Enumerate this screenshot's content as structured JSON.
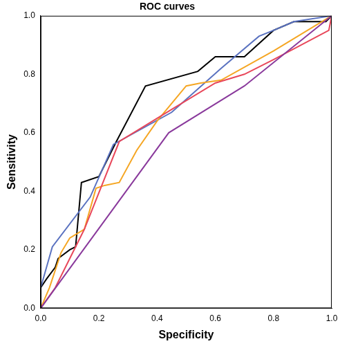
{
  "chart_data": {
    "type": "line",
    "title": "ROC curves",
    "x_label": "Specificity",
    "y_label": "Sensitivity",
    "xlim": [
      0,
      1
    ],
    "ylim": [
      0,
      1
    ],
    "xticks": [
      {
        "value": 0,
        "label": "0.0"
      },
      {
        "value": 0.2,
        "label": "0.2"
      },
      {
        "value": 0.4,
        "label": "0.4"
      },
      {
        "value": 0.6,
        "label": "0.6"
      },
      {
        "value": 0.8,
        "label": "0.8"
      },
      {
        "value": 1,
        "label": "1.0"
      }
    ],
    "yticks": [
      {
        "value": 0,
        "label": "0.0"
      },
      {
        "value": 0.2,
        "label": "0.2"
      },
      {
        "value": 0.4,
        "label": "0.4"
      },
      {
        "value": 0.6,
        "label": "0.6"
      },
      {
        "value": 0.8,
        "label": "0.8"
      },
      {
        "value": 1,
        "label": "1.0"
      }
    ],
    "grid": false,
    "series": [
      {
        "color": "#8a3a9c",
        "x": [
          0,
          0.44,
          0.7,
          1
        ],
        "values": [
          0,
          0.6,
          0.76,
          1
        ]
      },
      {
        "color": "#e8475a",
        "x": [
          0,
          0.05,
          0.15,
          0.27,
          0.45,
          0.6,
          0.7,
          0.8,
          0.99,
          1
        ],
        "values": [
          0,
          0.07,
          0.27,
          0.57,
          0.68,
          0.77,
          0.8,
          0.85,
          0.95,
          1
        ]
      },
      {
        "color": "#f5a623",
        "x": [
          0,
          0.03,
          0.07,
          0.1,
          0.15,
          0.19,
          0.22,
          0.27,
          0.33,
          0.4,
          0.5,
          0.55,
          0.62,
          0.8,
          0.95,
          1
        ],
        "values": [
          0,
          0.07,
          0.19,
          0.24,
          0.27,
          0.41,
          0.42,
          0.43,
          0.54,
          0.64,
          0.76,
          0.77,
          0.78,
          0.88,
          0.97,
          1
        ]
      },
      {
        "color": "#5a72c0",
        "x": [
          0,
          0.04,
          0.17,
          0.25,
          0.45,
          0.62,
          0.75,
          0.8,
          0.87,
          1
        ],
        "values": [
          0.07,
          0.21,
          0.38,
          0.56,
          0.67,
          0.82,
          0.93,
          0.95,
          0.98,
          1
        ]
      },
      {
        "color": "#000000",
        "x": [
          0,
          0,
          0.02,
          0.05,
          0.06,
          0.1,
          0.12,
          0.14,
          0.2,
          0.26,
          0.36,
          0.54,
          0.6,
          0.7,
          0.8,
          0.87,
          0.98,
          1
        ],
        "values": [
          0,
          0.07,
          0.1,
          0.14,
          0.17,
          0.2,
          0.21,
          0.43,
          0.45,
          0.57,
          0.76,
          0.81,
          0.86,
          0.86,
          0.95,
          0.98,
          0.98,
          1
        ]
      }
    ]
  }
}
